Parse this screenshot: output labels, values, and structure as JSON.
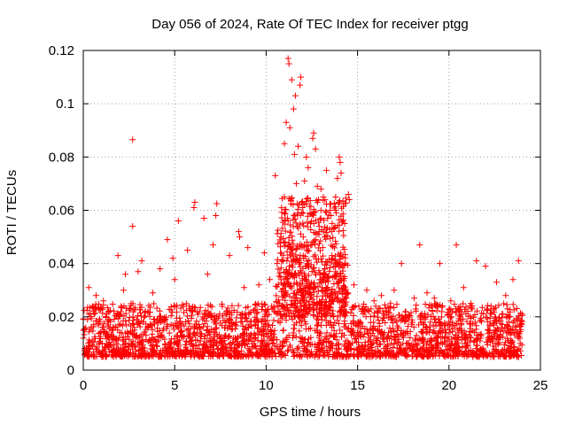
{
  "chart_data": {
    "type": "scatter",
    "title": "Day 056 of 2024, Rate Of TEC Index for receiver ptgg",
    "xlabel": "GPS time / hours",
    "ylabel": "ROTI / TECUs",
    "xlim": [
      0,
      25
    ],
    "ylim": [
      0,
      0.12
    ],
    "xticks": [
      0,
      5,
      10,
      15,
      20,
      25
    ],
    "xtick_labels": [
      "0",
      "5",
      "10",
      "15",
      "20",
      "25"
    ],
    "yticks": [
      0,
      0.02,
      0.04,
      0.06,
      0.08,
      0.1,
      0.12
    ],
    "ytick_labels": [
      "0",
      "0.02",
      "0.04",
      "0.06",
      "0.08",
      "0.1",
      "0.12"
    ],
    "grid": true,
    "marker": "+",
    "marker_color": "#ff0000",
    "series": [
      {
        "name": "ROTI",
        "points": [
          [
            2.7,
            0.0865
          ],
          [
            11.2,
            0.117
          ],
          [
            11.25,
            0.115
          ],
          [
            11.4,
            0.109
          ],
          [
            11.9,
            0.11
          ],
          [
            11.85,
            0.107
          ],
          [
            11.6,
            0.103
          ],
          [
            11.5,
            0.098
          ],
          [
            11.1,
            0.093
          ],
          [
            11.3,
            0.091
          ],
          [
            12.6,
            0.089
          ],
          [
            12.55,
            0.087
          ],
          [
            11.0,
            0.085
          ],
          [
            11.75,
            0.084
          ],
          [
            12.7,
            0.083
          ],
          [
            11.55,
            0.081
          ],
          [
            12.2,
            0.08
          ],
          [
            14.0,
            0.08
          ],
          [
            14.05,
            0.078
          ],
          [
            12.3,
            0.076
          ],
          [
            13.3,
            0.075
          ],
          [
            14.1,
            0.074
          ],
          [
            10.5,
            0.073
          ],
          [
            13.9,
            0.072
          ],
          [
            12.1,
            0.071
          ],
          [
            11.65,
            0.07
          ],
          [
            12.8,
            0.069
          ],
          [
            13.0,
            0.068
          ],
          [
            14.5,
            0.066
          ],
          [
            14.55,
            0.064
          ],
          [
            13.8,
            0.065
          ],
          [
            11.0,
            0.065
          ],
          [
            6.1,
            0.063
          ],
          [
            6.05,
            0.061
          ],
          [
            7.3,
            0.0625
          ],
          [
            7.25,
            0.058
          ],
          [
            13.5,
            0.06
          ],
          [
            13.55,
            0.058
          ],
          [
            5.2,
            0.056
          ],
          [
            6.6,
            0.057
          ],
          [
            2.7,
            0.054
          ],
          [
            8.5,
            0.052
          ],
          [
            8.55,
            0.05
          ],
          [
            14.3,
            0.055
          ],
          [
            4.6,
            0.049
          ],
          [
            12.0,
            0.061
          ],
          [
            12.4,
            0.059
          ],
          [
            11.8,
            0.062
          ],
          [
            20.4,
            0.047
          ],
          [
            18.4,
            0.047
          ],
          [
            21.5,
            0.041
          ],
          [
            23.8,
            0.041
          ],
          [
            22.0,
            0.039
          ],
          [
            17.4,
            0.04
          ],
          [
            19.5,
            0.04
          ],
          [
            0.3,
            0.031
          ],
          [
            1.9,
            0.043
          ],
          [
            3.2,
            0.041
          ],
          [
            4.2,
            0.038
          ],
          [
            5.7,
            0.045
          ],
          [
            7.1,
            0.047
          ],
          [
            8.0,
            0.043
          ],
          [
            9.0,
            0.046
          ],
          [
            9.9,
            0.044
          ],
          [
            10.8,
            0.048
          ],
          [
            12.9,
            0.052
          ],
          [
            13.2,
            0.05
          ],
          [
            15.5,
            0.03
          ],
          [
            16.3,
            0.028
          ],
          [
            17.0,
            0.03
          ],
          [
            18.8,
            0.029
          ],
          [
            20.8,
            0.031
          ],
          [
            22.6,
            0.033
          ],
          [
            23.5,
            0.034
          ],
          [
            1.1,
            0.026
          ],
          [
            0.7,
            0.028
          ],
          [
            2.2,
            0.03
          ],
          [
            3.8,
            0.029
          ],
          [
            5.0,
            0.034
          ],
          [
            6.8,
            0.036
          ],
          [
            8.8,
            0.031
          ],
          [
            10.2,
            0.034
          ],
          [
            14.8,
            0.032
          ],
          [
            15.9,
            0.026
          ],
          [
            19.2,
            0.027
          ],
          [
            21.2,
            0.025
          ],
          [
            23.1,
            0.028
          ],
          [
            10.6,
            0.04
          ],
          [
            11.45,
            0.045
          ],
          [
            12.05,
            0.042
          ],
          [
            11.2,
            0.056
          ],
          [
            11.7,
            0.054
          ],
          [
            12.5,
            0.047
          ],
          [
            13.1,
            0.046
          ],
          [
            13.6,
            0.043
          ],
          [
            14.2,
            0.039
          ],
          [
            9.6,
            0.032
          ],
          [
            4.9,
            0.042
          ],
          [
            3.0,
            0.037
          ],
          [
            2.3,
            0.036
          ],
          [
            16.8,
            0.025
          ],
          [
            18.1,
            0.027
          ],
          [
            20.1,
            0.026
          ],
          [
            22.3,
            0.024
          ],
          [
            24.0,
            0.021
          ],
          [
            0.0,
            0.012
          ]
        ],
        "band": {
          "description": "dense cloud of + markers across 0-24 h",
          "hours_range": [
            0,
            24
          ],
          "typical_range": [
            0.005,
            0.025
          ]
        }
      }
    ]
  }
}
